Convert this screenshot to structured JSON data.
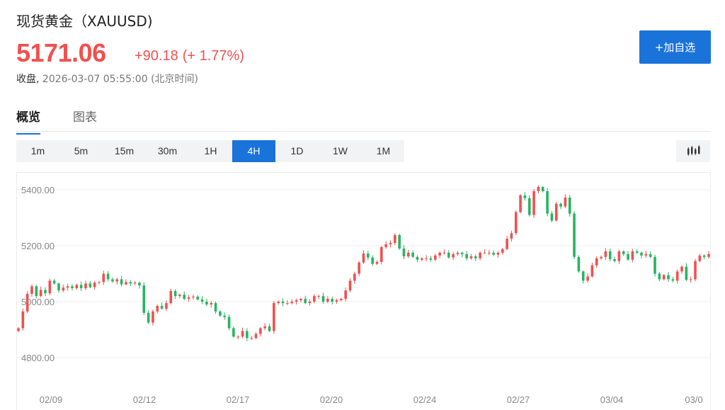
{
  "header": {
    "title": "现货黄金（XAUUSD)",
    "price": "5171.06",
    "change": "+90.18",
    "change_pct": "(+ 1.77%)",
    "status_label": "收盘,",
    "timestamp": "2026-03-07 05:55:00",
    "timezone": "(北京时间)",
    "add_button": "+加自选"
  },
  "tabs": [
    {
      "label": "概览",
      "active": true
    },
    {
      "label": "图表",
      "active": false
    }
  ],
  "periods": [
    {
      "label": "1m",
      "active": false
    },
    {
      "label": "5m",
      "active": false
    },
    {
      "label": "15m",
      "active": false
    },
    {
      "label": "30m",
      "active": false
    },
    {
      "label": "1H",
      "active": false
    },
    {
      "label": "4H",
      "active": true
    },
    {
      "label": "1D",
      "active": false
    },
    {
      "label": "1W",
      "active": false
    },
    {
      "label": "1M",
      "active": false
    }
  ],
  "chart_type_icon": "candlestick-icon",
  "colors": {
    "up": "#f0504f",
    "down": "#26b560",
    "accent": "#1a73d9"
  },
  "chart_data": {
    "type": "candlestick",
    "title": "",
    "xlabel": "",
    "ylabel": "",
    "y_ticks": [
      "5400.00",
      "5200.00",
      "5000.00",
      "4800.00"
    ],
    "y_tick_values": [
      5400,
      5200,
      5000,
      4800
    ],
    "x_ticks": [
      "02/09",
      "02/12",
      "02/17",
      "02/20",
      "02/24",
      "02/27",
      "03/04",
      "03/0"
    ],
    "grid": true,
    "closes": [
      4905,
      4965,
      5028,
      5055,
      5020,
      5042,
      5030,
      5075,
      5065,
      5040,
      5050,
      5055,
      5048,
      5060,
      5048,
      5065,
      5052,
      5068,
      5070,
      5100,
      5080,
      5072,
      5080,
      5062,
      5070,
      5065,
      5068,
      5058,
      4960,
      4925,
      4965,
      4985,
      4975,
      4995,
      5038,
      5020,
      5025,
      5010,
      5015,
      5018,
      5008,
      5000,
      4990,
      4995,
      4965,
      4950,
      4945,
      4905,
      4875,
      4875,
      4895,
      4870,
      4870,
      4885,
      4905,
      4912,
      4895,
      4995,
      5000,
      4995,
      4995,
      5000,
      5005,
      5010,
      4995,
      5000,
      5020,
      5020,
      5000,
      5010,
      5000,
      5005,
      5010,
      5040,
      5075,
      5100,
      5140,
      5172,
      5158,
      5135,
      5142,
      5195,
      5205,
      5210,
      5238,
      5190,
      5162,
      5175,
      5160,
      5150,
      5155,
      5155,
      5150,
      5165,
      5175,
      5175,
      5158,
      5170,
      5175,
      5170,
      5155,
      5162,
      5155,
      5175,
      5175,
      5175,
      5168,
      5175,
      5188,
      5225,
      5245,
      5320,
      5380,
      5370,
      5310,
      5395,
      5410,
      5395,
      5315,
      5290,
      5350,
      5340,
      5372,
      5315,
      5160,
      5108,
      5075,
      5090,
      5130,
      5155,
      5160,
      5180,
      5152,
      5145,
      5180,
      5170,
      5150,
      5180,
      5175,
      5165,
      5170,
      5160,
      5100,
      5080,
      5095,
      5080,
      5075,
      5108,
      5125,
      5078,
      5080,
      5145,
      5165,
      5160,
      5170
    ]
  }
}
